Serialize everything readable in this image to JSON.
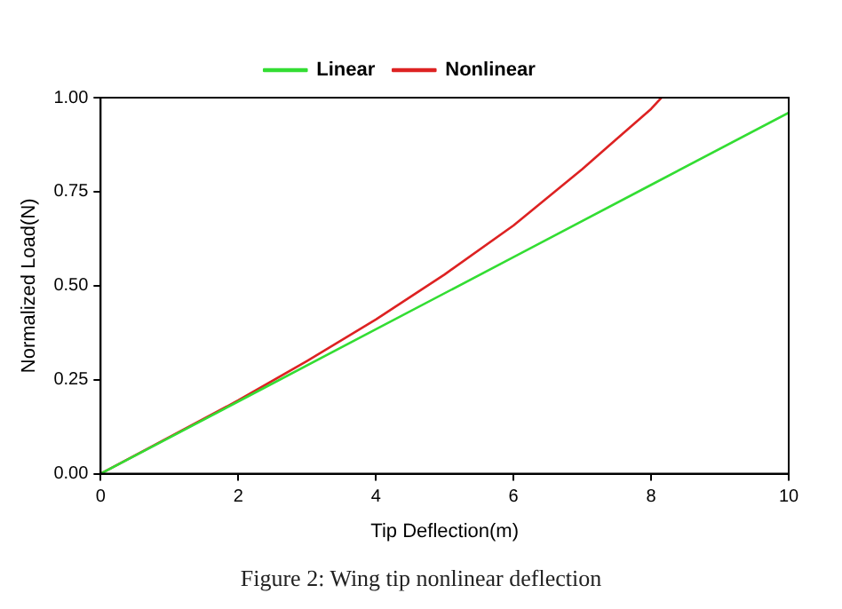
{
  "chart_data": {
    "type": "line",
    "xlabel": "Tip Deflection(m)",
    "ylabel": "Normalized Load(N)",
    "xlim": [
      0,
      10
    ],
    "ylim": [
      0,
      1
    ],
    "xticks": [
      0,
      2,
      4,
      6,
      8,
      10
    ],
    "yticks": [
      {
        "value": 0,
        "label": "0.00"
      },
      {
        "value": 0.25,
        "label": "0.25"
      },
      {
        "value": 0.5,
        "label": "0.50"
      },
      {
        "value": 0.75,
        "label": "0.75"
      },
      {
        "value": 1,
        "label": "1.00"
      }
    ],
    "series": [
      {
        "name": "Linear",
        "color": "#33dd33",
        "x": [
          0,
          2,
          4,
          6,
          8,
          10
        ],
        "values": [
          0,
          0.192,
          0.384,
          0.576,
          0.768,
          0.96
        ]
      },
      {
        "name": "Nonlinear",
        "color": "#dd2222",
        "x": [
          0,
          2,
          3,
          4,
          5,
          6,
          7,
          7.5,
          8,
          8.15
        ],
        "values": [
          0,
          0.195,
          0.3,
          0.41,
          0.53,
          0.66,
          0.81,
          0.89,
          0.97,
          1.0
        ]
      }
    ],
    "legend": "top",
    "grid": false,
    "marker": "none",
    "line_style": "solid",
    "annotations": [
      "Figure 2: Wing tip nonlinear deflection"
    ]
  }
}
